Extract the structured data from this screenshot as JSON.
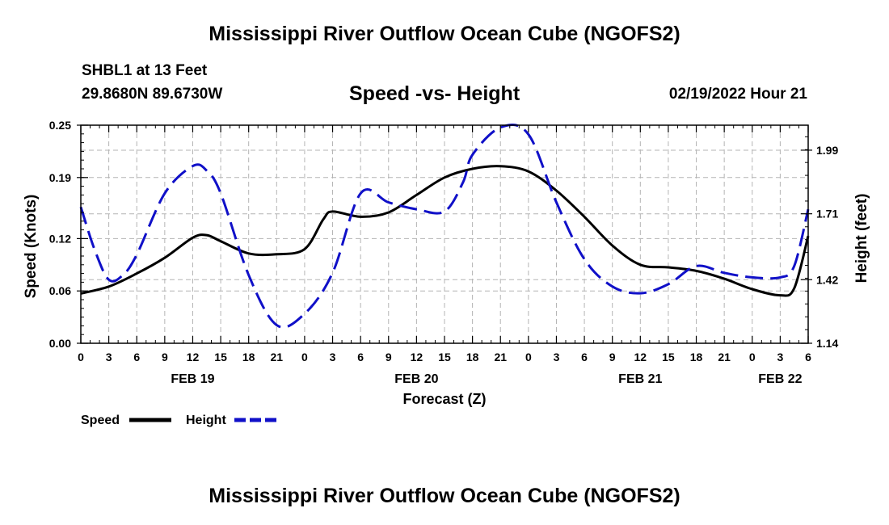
{
  "header": {
    "title": "Mississippi River Outflow Ocean Cube (NGOFS2)",
    "station": "SHBL1 at 13 Feet",
    "coords": "29.8680N  89.6730W",
    "subtitle": "Speed -vs- Height",
    "datetime": "02/19/2022 Hour 21"
  },
  "footer": {
    "title": "Mississippi River Outflow Ocean Cube (NGOFS2)"
  },
  "chart_data": {
    "type": "line",
    "title": "Speed -vs- Height",
    "xlabel": "Forecast (Z)",
    "ylabel": "Speed (Knots)",
    "y2label": "Height (feet)",
    "x_unit": "hours since FEB 19 00Z",
    "xlim": [
      0,
      78
    ],
    "ylim": [
      0,
      0.25
    ],
    "y2lim": [
      1.14,
      2.1
    ],
    "x_ticks": [
      0,
      3,
      6,
      9,
      12,
      15,
      18,
      21,
      24,
      27,
      30,
      33,
      36,
      39,
      42,
      45,
      48,
      51,
      54,
      57,
      60,
      63,
      66,
      69,
      72,
      75,
      78
    ],
    "x_tick_labels": [
      "0",
      "3",
      "6",
      "9",
      "12",
      "15",
      "18",
      "21",
      "0",
      "3",
      "6",
      "9",
      "12",
      "15",
      "18",
      "21",
      "0",
      "3",
      "6",
      "9",
      "12",
      "15",
      "18",
      "21",
      "0",
      "3",
      "6"
    ],
    "y_ticks": [
      0,
      0.06,
      0.12,
      0.19,
      0.25
    ],
    "y_tick_labels": [
      "0.00",
      "0.06",
      "0.12",
      "0.19",
      "0.25"
    ],
    "y2_ticks": [
      1.14,
      1.42,
      1.71,
      1.99
    ],
    "y2_tick_labels": [
      "1.14",
      "1.42",
      "1.71",
      "1.99"
    ],
    "date_labels": [
      {
        "x": 12,
        "label": "FEB 19"
      },
      {
        "x": 36,
        "label": "FEB 20"
      },
      {
        "x": 60,
        "label": "FEB 21"
      },
      {
        "x": 75,
        "label": "FEB 22"
      }
    ],
    "grid": true,
    "legend_position": "bottom-left",
    "series": [
      {
        "name": "Speed",
        "axis": "left",
        "color": "#000000",
        "style": "solid",
        "x": [
          0,
          3,
          6,
          9,
          12,
          13.5,
          15,
          18,
          21,
          24,
          26,
          27,
          30,
          33,
          36,
          39,
          42,
          45,
          48,
          51,
          54,
          57,
          60,
          63,
          66,
          69,
          72,
          75,
          76.5,
          78
        ],
        "y": [
          0.057,
          0.065,
          0.08,
          0.098,
          0.121,
          0.124,
          0.117,
          0.103,
          0.102,
          0.108,
          0.142,
          0.151,
          0.145,
          0.15,
          0.17,
          0.19,
          0.2,
          0.203,
          0.197,
          0.175,
          0.145,
          0.112,
          0.09,
          0.087,
          0.083,
          0.074,
          0.062,
          0.055,
          0.063,
          0.123
        ]
      },
      {
        "name": "Height",
        "axis": "right",
        "color": "#1010c8",
        "style": "dashed",
        "x": [
          0,
          1.5,
          3,
          4.5,
          6,
          9,
          12,
          13.5,
          15,
          18,
          21,
          24,
          27,
          30,
          33,
          36,
          39,
          41,
          42,
          45,
          48,
          51,
          54,
          57,
          60,
          63,
          66,
          69,
          72,
          75,
          76.5,
          78
        ],
        "y": [
          1.74,
          1.55,
          1.42,
          1.44,
          1.53,
          1.8,
          1.92,
          1.9,
          1.8,
          1.44,
          1.22,
          1.27,
          1.45,
          1.8,
          1.76,
          1.73,
          1.72,
          1.85,
          1.97,
          2.09,
          2.06,
          1.76,
          1.51,
          1.39,
          1.36,
          1.4,
          1.48,
          1.45,
          1.43,
          1.43,
          1.48,
          1.73
        ]
      }
    ]
  }
}
